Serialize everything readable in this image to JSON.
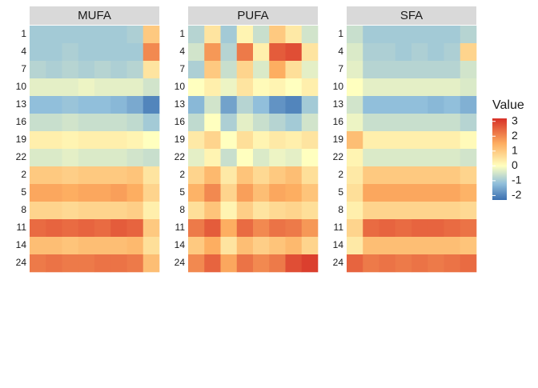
{
  "chart_data": {
    "type": "heatmap",
    "rows": [
      "1",
      "4",
      "7",
      "10",
      "13",
      "16",
      "19",
      "22",
      "2",
      "5",
      "8",
      "11",
      "14",
      "24"
    ],
    "facets": [
      {
        "name": "MUFA",
        "values": [
          [
            -1,
            -1,
            -1,
            -1,
            -1,
            -1,
            -0.9,
            1
          ],
          [
            -1,
            -1,
            -0.9,
            -1,
            -1,
            -1,
            -1,
            2
          ],
          [
            -0.8,
            -0.9,
            -0.8,
            -0.9,
            -0.8,
            -0.9,
            -0.8,
            0.5
          ],
          [
            -0.3,
            -0.3,
            -0.3,
            -0.2,
            -0.3,
            -0.3,
            -0.3,
            -0.5
          ],
          [
            -1.2,
            -1.2,
            -1.1,
            -1.2,
            -1.2,
            -1.3,
            -1.5,
            -2
          ],
          [
            -0.6,
            -0.6,
            -0.5,
            -0.6,
            -0.6,
            -0.6,
            -0.7,
            -1
          ],
          [
            0.3,
            0.3,
            0.2,
            0.3,
            0.3,
            0.3,
            0.2,
            0
          ],
          [
            -0.4,
            -0.4,
            -0.3,
            -0.4,
            -0.4,
            -0.4,
            -0.5,
            -0.6
          ],
          [
            1,
            1,
            0.9,
            1,
            1,
            1,
            1.1,
            0.5
          ],
          [
            1.6,
            1.6,
            1.5,
            1.6,
            1.6,
            1.7,
            1.5,
            0.8
          ],
          [
            0.8,
            0.8,
            0.7,
            0.8,
            0.8,
            0.8,
            0.9,
            0.3
          ],
          [
            2.4,
            2.5,
            2.4,
            2.5,
            2.4,
            2.6,
            2.5,
            1
          ],
          [
            1.2,
            1.2,
            1.1,
            1.2,
            1.2,
            1.2,
            1.3,
            0.6
          ],
          [
            2.2,
            2.3,
            2.2,
            2.2,
            2.3,
            2.3,
            2.2,
            1.2
          ]
        ]
      },
      {
        "name": "PUFA",
        "values": [
          [
            -0.8,
            0.5,
            -1,
            0.2,
            -0.6,
            1,
            0.4,
            -0.5
          ],
          [
            -0.5,
            1.8,
            -0.8,
            2.2,
            0.3,
            2.6,
            2.8,
            0.5
          ],
          [
            -0.9,
            1,
            -0.6,
            0.8,
            -0.4,
            1.5,
            0.6,
            -0.3
          ],
          [
            0,
            0.3,
            -0.2,
            0.5,
            0.1,
            0.2,
            0,
            0.3
          ],
          [
            -1.3,
            -0.5,
            -1.6,
            -0.8,
            -1.2,
            -1.8,
            -2,
            -1
          ],
          [
            -0.7,
            0,
            -0.9,
            -0.3,
            -0.6,
            -0.8,
            -1,
            -0.5
          ],
          [
            0.4,
            0.8,
            0,
            0.6,
            0.2,
            0.4,
            0.3,
            0.5
          ],
          [
            -0.3,
            0.2,
            -0.6,
            0,
            -0.4,
            -0.2,
            -0.3,
            0
          ],
          [
            0.8,
            1.3,
            0.4,
            1.1,
            0.7,
            1,
            1.2,
            0.6
          ],
          [
            1.4,
            2,
            0.8,
            1.7,
            1.2,
            1.6,
            1.5,
            1.1
          ],
          [
            0.6,
            1.1,
            0.2,
            0.9,
            0.5,
            0.7,
            0.8,
            0.6
          ],
          [
            2.2,
            2.6,
            1.5,
            2.4,
            2,
            2.3,
            2.2,
            1.8
          ],
          [
            1,
            1.5,
            0.5,
            1.2,
            0.9,
            1.1,
            1.3,
            0.8
          ],
          [
            2,
            2.5,
            1.6,
            2.3,
            2,
            2.2,
            2.8,
            3
          ]
        ]
      },
      {
        "name": "SFA",
        "values": [
          [
            -0.6,
            -1,
            -1,
            -1,
            -1,
            -1,
            -1,
            -0.8
          ],
          [
            -0.4,
            -0.9,
            -0.9,
            -1,
            -0.9,
            -1,
            -0.9,
            0.8
          ],
          [
            -0.3,
            -0.8,
            -0.8,
            -0.8,
            -0.8,
            -0.8,
            -0.8,
            -0.5
          ],
          [
            0,
            -0.3,
            -0.3,
            -0.3,
            -0.3,
            -0.3,
            -0.3,
            -0.4
          ],
          [
            -0.5,
            -1.2,
            -1.2,
            -1.2,
            -1.2,
            -1.3,
            -1.2,
            -1.4
          ],
          [
            -0.2,
            -0.6,
            -0.6,
            -0.6,
            -0.6,
            -0.6,
            -0.6,
            -0.8
          ],
          [
            1.2,
            0.3,
            0.3,
            0.3,
            0.3,
            0.3,
            0.3,
            0.1
          ],
          [
            0.2,
            -0.4,
            -0.4,
            -0.4,
            -0.4,
            -0.4,
            -0.4,
            -0.5
          ],
          [
            0.4,
            1,
            1,
            1,
            1,
            1,
            1,
            0.8
          ],
          [
            0.6,
            1.6,
            1.6,
            1.6,
            1.6,
            1.6,
            1.6,
            1.4
          ],
          [
            0.3,
            0.8,
            0.8,
            0.8,
            0.8,
            0.8,
            0.8,
            0.7
          ],
          [
            0.8,
            2.4,
            2.5,
            2.4,
            2.5,
            2.5,
            2.4,
            2.3
          ],
          [
            0.4,
            1.2,
            1.2,
            1.2,
            1.2,
            1.2,
            1.2,
            1.1
          ],
          [
            2.5,
            2.2,
            2.3,
            2.2,
            2.3,
            2.2,
            2.3,
            2.4
          ]
        ]
      }
    ],
    "legend": {
      "title": "Value",
      "ticks": [
        3,
        2,
        1,
        0,
        -1,
        -2
      ]
    },
    "zlim": [
      -2.3,
      3.2
    ],
    "palette": [
      [
        -2.3,
        "#3b6fb0"
      ],
      [
        -1.2,
        "#91bfdb"
      ],
      [
        0,
        "#ffffbf"
      ],
      [
        1.5,
        "#fdae61"
      ],
      [
        3.2,
        "#d73027"
      ]
    ]
  }
}
